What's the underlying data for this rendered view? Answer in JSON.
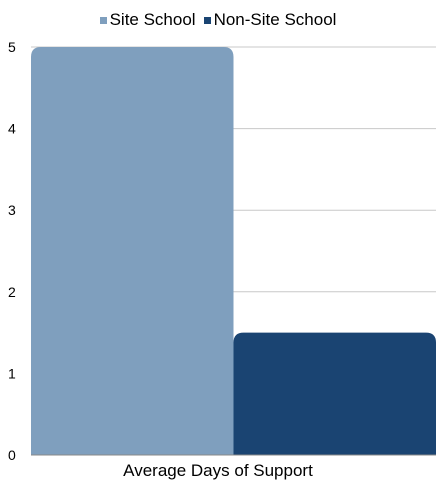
{
  "chart_data": {
    "type": "bar",
    "categories": [
      "Average Days of Support"
    ],
    "series": [
      {
        "name": "Site School",
        "values": [
          5
        ],
        "color": "#7f9fbe"
      },
      {
        "name": "Non-Site School",
        "values": [
          1.5
        ],
        "color": "#1a4472"
      }
    ],
    "xlabel": "Average Days of Support",
    "ylim": [
      0,
      5
    ],
    "yticks": [
      "0",
      "1",
      "2",
      "3",
      "4",
      "5"
    ],
    "grid": true,
    "legend": "top-center"
  }
}
